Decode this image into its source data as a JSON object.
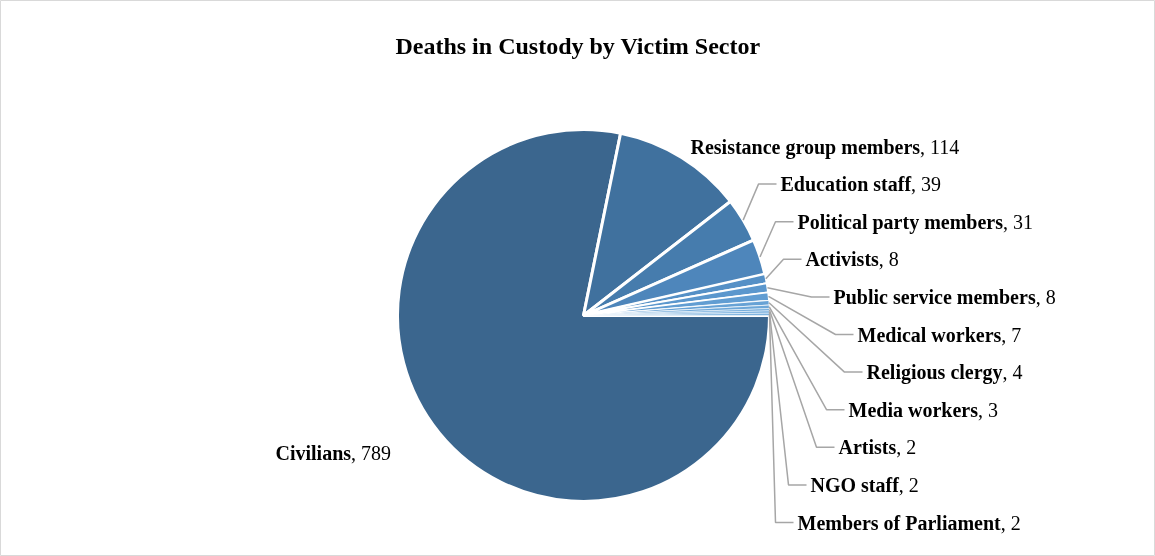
{
  "chart_data": {
    "type": "pie",
    "title": "Deaths in Custody by Victim Sector",
    "categories": [
      "Civilians",
      "Resistance group members",
      "Education staff",
      "Political party members",
      "Activists",
      "Public service members",
      "Medical workers",
      "Religious clergy",
      "Media workers",
      "Artists",
      "NGO staff",
      "Members of Parliament"
    ],
    "values": [
      789,
      114,
      39,
      31,
      8,
      8,
      7,
      4,
      3,
      2,
      2,
      2
    ],
    "colors": [
      "#3b668e",
      "#40719e",
      "#467cad",
      "#4e86bb",
      "#5590c6",
      "#5b97cd",
      "#619dd2",
      "#67a2d5",
      "#6da7d8",
      "#73acdb",
      "#79b0de",
      "#7fb4e0"
    ],
    "value_labels": [
      ", 789",
      ", 114",
      ", 39",
      ", 31",
      ", 8",
      ", 8",
      ", 7",
      ", 4",
      ", 3",
      ", 2",
      ", 2",
      ", 2"
    ]
  }
}
